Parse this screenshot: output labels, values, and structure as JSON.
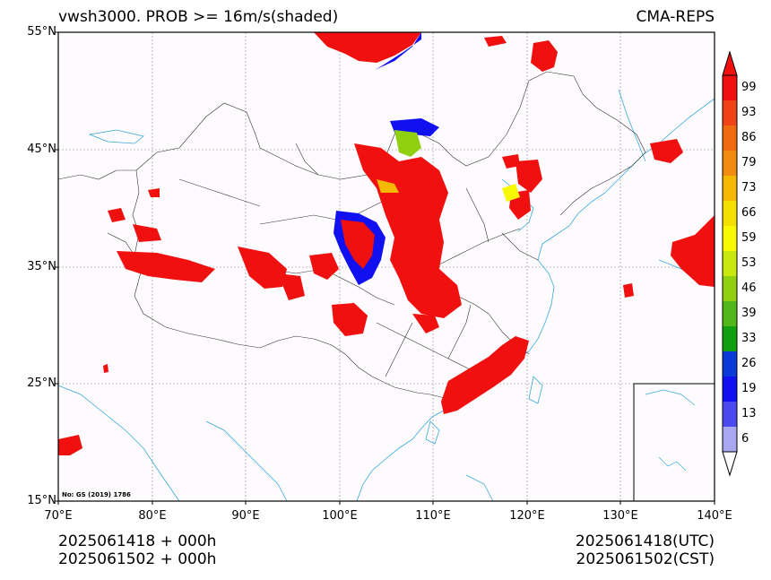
{
  "header": {
    "title_left": "vwsh3000. PROB >= 16m/s(shaded)",
    "title_right": "CMA-REPS"
  },
  "axes": {
    "lat_labels": [
      "55°N",
      "45°N",
      "35°N",
      "25°N",
      "15°N"
    ],
    "lon_labels": [
      "70°E",
      "80°E",
      "90°E",
      "100°E",
      "110°E",
      "120°E",
      "130°E",
      "140°E"
    ],
    "lat_range": [
      15,
      55
    ],
    "lon_range": [
      70,
      140
    ]
  },
  "map": {
    "review_number": "No: GS (2019) 1786",
    "gridlines": true
  },
  "colorbar": {
    "levels": [
      "99",
      "93",
      "86",
      "79",
      "73",
      "66",
      "59",
      "53",
      "46",
      "39",
      "33",
      "26",
      "19",
      "13",
      "6"
    ],
    "colors": [
      "#f01010",
      "#f04418",
      "#f06a10",
      "#f08a10",
      "#f4b800",
      "#f4e000",
      "#f8f800",
      "#c8e810",
      "#90d010",
      "#50b818",
      "#10a010",
      "#0a3ad8",
      "#1010f0",
      "#4a4af0",
      "#a8a8f0"
    ],
    "extend": "both"
  },
  "footer": {
    "left_line1": "2025061418  +  000h",
    "left_line2": "2025061502  +  000h",
    "right_line1": "2025061418(UTC)",
    "right_line2": "2025061502(CST)"
  }
}
